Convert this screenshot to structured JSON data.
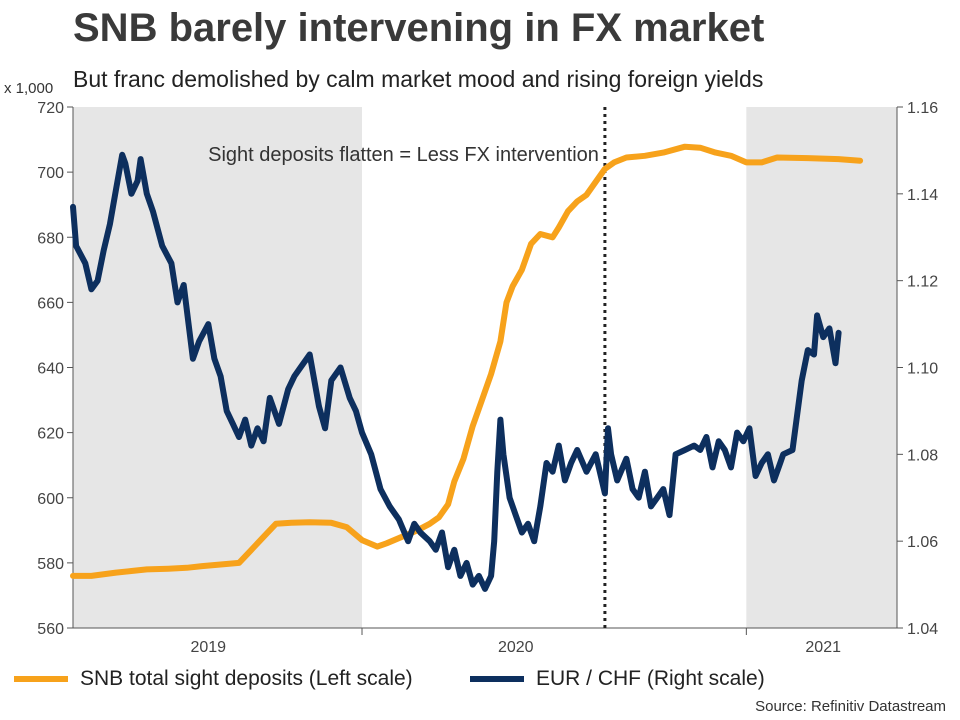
{
  "title": "SNB barely intervening in FX market",
  "subtitle": "But franc demolished by calm market mood and rising foreign yields",
  "unit_label": "x 1,000",
  "source": "Source: Refinitiv Datastream",
  "colors": {
    "sight": "#f7a21b",
    "eurchf": "#0d2f5e",
    "shade": "#e6e6e6"
  },
  "chart_data": {
    "type": "line",
    "title": "SNB barely intervening in FX market",
    "x_range": [
      2018.56,
      2021.24
    ],
    "x_ticks": [
      {
        "label": "2019",
        "pos": 2019.0
      },
      {
        "label": "2020",
        "pos": 2020.0
      },
      {
        "label": "2021",
        "pos": 2021.0
      }
    ],
    "shaded_ranges": [
      [
        2018.56,
        2019.5
      ],
      [
        2020.75,
        2021.24
      ]
    ],
    "vline": {
      "x": 2020.29,
      "style": "dotted"
    },
    "annotation": "Sight deposits flatten = Less FX intervention",
    "left_axis": {
      "min": 560,
      "max": 720,
      "ticks": [
        "720",
        "700",
        "680",
        "660",
        "640",
        "620",
        "600",
        "580",
        "560"
      ]
    },
    "right_axis": {
      "min": 1.04,
      "max": 1.16,
      "ticks": [
        "1.16",
        "1.14",
        "1.12",
        "1.10",
        "1.08",
        "1.06",
        "1.04"
      ]
    },
    "series": [
      {
        "name": "SNB total sight deposits (Left scale)",
        "axis": "left",
        "color": "#f7a21b",
        "points": [
          [
            2018.56,
            576
          ],
          [
            2018.62,
            576
          ],
          [
            2018.7,
            577
          ],
          [
            2018.75,
            577.5
          ],
          [
            2018.8,
            578
          ],
          [
            2018.87,
            578.2
          ],
          [
            2018.93,
            578.5
          ],
          [
            2018.98,
            579
          ],
          [
            2019.04,
            579.5
          ],
          [
            2019.1,
            580
          ],
          [
            2019.14,
            584
          ],
          [
            2019.18,
            588
          ],
          [
            2019.22,
            592
          ],
          [
            2019.27,
            592.3
          ],
          [
            2019.33,
            592.5
          ],
          [
            2019.4,
            592.3
          ],
          [
            2019.45,
            591
          ],
          [
            2019.5,
            587
          ],
          [
            2019.55,
            585
          ],
          [
            2019.58,
            586
          ],
          [
            2019.63,
            588
          ],
          [
            2019.68,
            590
          ],
          [
            2019.72,
            592
          ],
          [
            2019.75,
            594
          ],
          [
            2019.78,
            598
          ],
          [
            2019.8,
            605
          ],
          [
            2019.83,
            612
          ],
          [
            2019.86,
            622
          ],
          [
            2019.89,
            630
          ],
          [
            2019.92,
            638
          ],
          [
            2019.95,
            648
          ],
          [
            2019.97,
            660
          ],
          [
            2019.99,
            665
          ],
          [
            2020.02,
            670
          ],
          [
            2020.05,
            678
          ],
          [
            2020.08,
            681
          ],
          [
            2020.12,
            680
          ],
          [
            2020.14,
            683
          ],
          [
            2020.17,
            688
          ],
          [
            2020.2,
            691
          ],
          [
            2020.23,
            693
          ],
          [
            2020.26,
            697
          ],
          [
            2020.29,
            701
          ],
          [
            2020.32,
            703
          ],
          [
            2020.36,
            704.5
          ],
          [
            2020.42,
            705
          ],
          [
            2020.48,
            706
          ],
          [
            2020.55,
            707.8
          ],
          [
            2020.6,
            707.5
          ],
          [
            2020.65,
            706
          ],
          [
            2020.7,
            705
          ],
          [
            2020.75,
            703
          ],
          [
            2020.8,
            703
          ],
          [
            2020.85,
            704.5
          ],
          [
            2020.95,
            704.3
          ],
          [
            2021.05,
            704
          ],
          [
            2021.12,
            703.5
          ]
        ]
      },
      {
        "name": "EUR / CHF (Right scale)",
        "axis": "right",
        "color": "#0d2f5e",
        "points": [
          [
            2018.56,
            1.137
          ],
          [
            2018.57,
            1.128
          ],
          [
            2018.6,
            1.124
          ],
          [
            2018.62,
            1.118
          ],
          [
            2018.64,
            1.12
          ],
          [
            2018.66,
            1.127
          ],
          [
            2018.68,
            1.133
          ],
          [
            2018.7,
            1.141
          ],
          [
            2018.72,
            1.149
          ],
          [
            2018.73,
            1.147
          ],
          [
            2018.75,
            1.14
          ],
          [
            2018.77,
            1.143
          ],
          [
            2018.78,
            1.148
          ],
          [
            2018.8,
            1.14
          ],
          [
            2018.82,
            1.136
          ],
          [
            2018.85,
            1.128
          ],
          [
            2018.88,
            1.124
          ],
          [
            2018.9,
            1.115
          ],
          [
            2018.92,
            1.119
          ],
          [
            2018.95,
            1.102
          ],
          [
            2018.97,
            1.106
          ],
          [
            2019.0,
            1.11
          ],
          [
            2019.02,
            1.102
          ],
          [
            2019.04,
            1.098
          ],
          [
            2019.06,
            1.09
          ],
          [
            2019.08,
            1.087
          ],
          [
            2019.1,
            1.084
          ],
          [
            2019.12,
            1.088
          ],
          [
            2019.14,
            1.082
          ],
          [
            2019.16,
            1.086
          ],
          [
            2019.18,
            1.083
          ],
          [
            2019.2,
            1.093
          ],
          [
            2019.23,
            1.087
          ],
          [
            2019.26,
            1.095
          ],
          [
            2019.28,
            1.098
          ],
          [
            2019.3,
            1.1
          ],
          [
            2019.33,
            1.103
          ],
          [
            2019.36,
            1.091
          ],
          [
            2019.38,
            1.086
          ],
          [
            2019.4,
            1.097
          ],
          [
            2019.43,
            1.1
          ],
          [
            2019.46,
            1.093
          ],
          [
            2019.48,
            1.09
          ],
          [
            2019.5,
            1.085
          ],
          [
            2019.53,
            1.08
          ],
          [
            2019.56,
            1.072
          ],
          [
            2019.59,
            1.068
          ],
          [
            2019.62,
            1.065
          ],
          [
            2019.65,
            1.06
          ],
          [
            2019.67,
            1.064
          ],
          [
            2019.69,
            1.062
          ],
          [
            2019.72,
            1.06
          ],
          [
            2019.74,
            1.058
          ],
          [
            2019.76,
            1.062
          ],
          [
            2019.78,
            1.054
          ],
          [
            2019.8,
            1.058
          ],
          [
            2019.82,
            1.052
          ],
          [
            2019.84,
            1.055
          ],
          [
            2019.86,
            1.05
          ],
          [
            2019.88,
            1.052
          ],
          [
            2019.9,
            1.049
          ],
          [
            2019.92,
            1.052
          ],
          [
            2019.93,
            1.06
          ],
          [
            2019.94,
            1.076
          ],
          [
            2019.95,
            1.088
          ],
          [
            2019.96,
            1.08
          ],
          [
            2019.98,
            1.07
          ],
          [
            2020.0,
            1.066
          ],
          [
            2020.02,
            1.062
          ],
          [
            2020.04,
            1.064
          ],
          [
            2020.06,
            1.06
          ],
          [
            2020.08,
            1.068
          ],
          [
            2020.1,
            1.078
          ],
          [
            2020.12,
            1.076
          ],
          [
            2020.14,
            1.082
          ],
          [
            2020.16,
            1.074
          ],
          [
            2020.18,
            1.078
          ],
          [
            2020.2,
            1.081
          ],
          [
            2020.23,
            1.076
          ],
          [
            2020.26,
            1.08
          ],
          [
            2020.29,
            1.071
          ],
          [
            2020.3,
            1.086
          ],
          [
            2020.31,
            1.08
          ],
          [
            2020.33,
            1.074
          ],
          [
            2020.36,
            1.079
          ],
          [
            2020.38,
            1.072
          ],
          [
            2020.4,
            1.07
          ],
          [
            2020.42,
            1.076
          ],
          [
            2020.44,
            1.068
          ],
          [
            2020.46,
            1.07
          ],
          [
            2020.48,
            1.072
          ],
          [
            2020.5,
            1.066
          ],
          [
            2020.52,
            1.08
          ],
          [
            2020.55,
            1.081
          ],
          [
            2020.58,
            1.082
          ],
          [
            2020.6,
            1.081
          ],
          [
            2020.62,
            1.084
          ],
          [
            2020.64,
            1.077
          ],
          [
            2020.66,
            1.083
          ],
          [
            2020.68,
            1.081
          ],
          [
            2020.7,
            1.077
          ],
          [
            2020.72,
            1.085
          ],
          [
            2020.74,
            1.083
          ],
          [
            2020.76,
            1.086
          ],
          [
            2020.78,
            1.075
          ],
          [
            2020.8,
            1.078
          ],
          [
            2020.82,
            1.08
          ],
          [
            2020.84,
            1.074
          ],
          [
            2020.86,
            1.078
          ],
          [
            2020.87,
            1.08
          ],
          [
            2020.9,
            1.081
          ],
          [
            2020.93,
            1.097
          ],
          [
            2020.95,
            1.104
          ],
          [
            2020.97,
            1.103
          ],
          [
            2020.98,
            1.112
          ],
          [
            2021.0,
            1.107
          ],
          [
            2021.02,
            1.109
          ],
          [
            2021.04,
            1.101
          ],
          [
            2021.05,
            1.108
          ]
        ]
      }
    ]
  }
}
